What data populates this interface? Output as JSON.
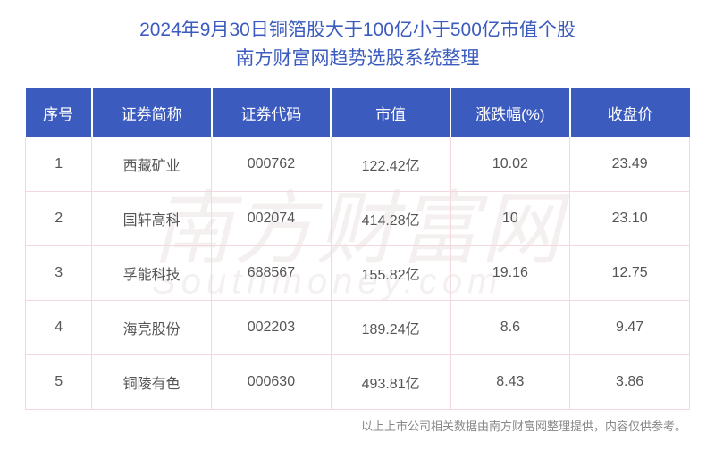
{
  "title": {
    "line1": "2024年9月30日铜箔股大于100亿小于500亿市值个股",
    "line2": "南方财富网趋势选股系统整理"
  },
  "watermark": {
    "main": "南方财富网",
    "sub": "Southmoney.com"
  },
  "table": {
    "columns": [
      "序号",
      "证券简称",
      "证券代码",
      "市值",
      "涨跌幅(%)",
      "收盘价"
    ],
    "rows": [
      {
        "idx": "1",
        "name": "西藏矿业",
        "code": "000762",
        "mcap": "122.42亿",
        "chg": "10.02",
        "close": "23.49"
      },
      {
        "idx": "2",
        "name": "国轩高科",
        "code": "002074",
        "mcap": "414.28亿",
        "chg": "10",
        "close": "23.10"
      },
      {
        "idx": "3",
        "name": "孚能科技",
        "code": "688567",
        "mcap": "155.82亿",
        "chg": "19.16",
        "close": "12.75"
      },
      {
        "idx": "4",
        "name": "海亮股份",
        "code": "002203",
        "mcap": "189.24亿",
        "chg": "8.6",
        "close": "9.47"
      },
      {
        "idx": "5",
        "name": "铜陵有色",
        "code": "000630",
        "mcap": "493.81亿",
        "chg": "8.43",
        "close": "3.86"
      }
    ]
  },
  "footer": "以上上市公司相关数据由南方财富网整理提供，内容仅供参考。",
  "colors": {
    "header_bg": "#3b5bbf",
    "header_text": "#ffffff",
    "title_text": "#3b5bbf",
    "cell_text": "#555555",
    "border": "#f3d9dd",
    "footer_text": "#888888",
    "watermark": "rgba(220,200,200,0.28)"
  }
}
